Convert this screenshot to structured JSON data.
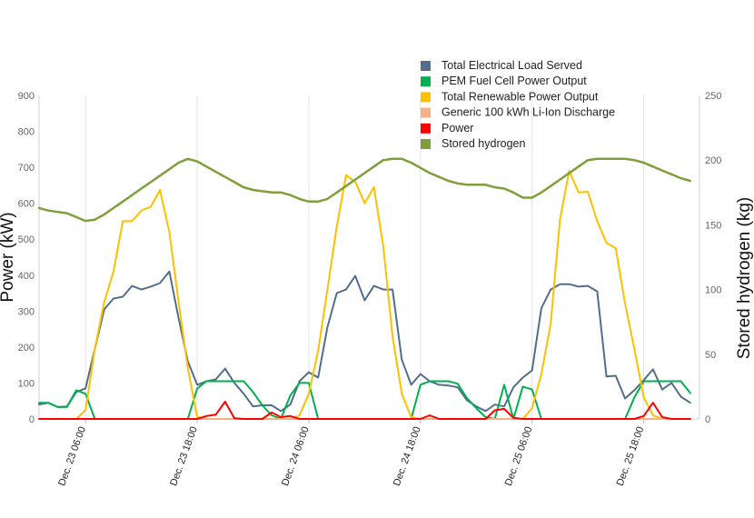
{
  "chart_data": {
    "type": "line",
    "xlabel": "",
    "ylabel": "Power (kW)",
    "y2label": "Stored hydrogen (kg)",
    "xlim": [
      0,
      71
    ],
    "ylim": [
      0,
      900
    ],
    "y2lim": [
      0,
      250
    ],
    "yticks": [
      0,
      100,
      200,
      300,
      400,
      500,
      600,
      700,
      800,
      900
    ],
    "yticklabels": [
      "0",
      "100",
      "200",
      "300",
      "400",
      "500",
      "600",
      "700",
      "800",
      "900"
    ],
    "y2ticks": [
      0,
      50,
      100,
      150,
      200,
      250
    ],
    "y2ticklabels": [
      "0",
      "50",
      "100",
      "150",
      "200",
      "250"
    ],
    "xticks": [
      {
        "x": 5,
        "label": "Dec. 23 06:00"
      },
      {
        "x": 17,
        "label": "Dec. 23 18:00"
      },
      {
        "x": 29,
        "label": "Dec. 24 06:00"
      },
      {
        "x": 41,
        "label": "Dec. 24 18:00"
      },
      {
        "x": 53,
        "label": "Dec. 25 06:00"
      },
      {
        "x": 65,
        "label": "Dec. 25 18:00"
      }
    ],
    "grid": true,
    "legend_position": "top-right",
    "series": [
      {
        "name": "Total Electrical Load Served",
        "color": "#536e8a",
        "axis": "left",
        "values": [
          40,
          45,
          33,
          35,
          75,
          85,
          195,
          305,
          335,
          340,
          370,
          360,
          368,
          378,
          410,
          280,
          160,
          95,
          105,
          110,
          140,
          100,
          70,
          35,
          38,
          38,
          22,
          40,
          105,
          130,
          115,
          255,
          350,
          360,
          398,
          330,
          370,
          360,
          360,
          165,
          95,
          125,
          105,
          95,
          93,
          88,
          52,
          35,
          22,
          40,
          35,
          88,
          115,
          135,
          308,
          360,
          375,
          375,
          368,
          370,
          355,
          118,
          120,
          57,
          80,
          108,
          138,
          82,
          100,
          62,
          45
        ]
      },
      {
        "name": "PEM Fuel Cell Power Output",
        "color": "#00b050",
        "axis": "left",
        "values": [
          45,
          45,
          33,
          33,
          80,
          70,
          0,
          0,
          0,
          0,
          0,
          0,
          0,
          0,
          0,
          0,
          0,
          85,
          105,
          105,
          105,
          105,
          105,
          75,
          38,
          10,
          0,
          65,
          100,
          100,
          0,
          0,
          0,
          0,
          0,
          0,
          0,
          0,
          0,
          0,
          0,
          95,
          105,
          105,
          105,
          98,
          58,
          30,
          5,
          0,
          95,
          0,
          90,
          82,
          0,
          0,
          0,
          0,
          0,
          0,
          0,
          0,
          0,
          0,
          60,
          105,
          105,
          105,
          105,
          105,
          72
        ]
      },
      {
        "name": "Total Renewable Power Output",
        "color": "#ffc000",
        "axis": "left",
        "values": [
          0,
          0,
          0,
          0,
          0,
          25,
          195,
          325,
          410,
          550,
          550,
          580,
          590,
          637,
          520,
          325,
          140,
          5,
          0,
          0,
          0,
          0,
          0,
          0,
          0,
          0,
          0,
          0,
          10,
          70,
          190,
          360,
          535,
          678,
          660,
          600,
          645,
          480,
          230,
          70,
          5,
          0,
          0,
          0,
          0,
          0,
          0,
          0,
          0,
          0,
          0,
          0,
          0,
          30,
          125,
          265,
          555,
          690,
          630,
          632,
          550,
          490,
          475,
          320,
          195,
          60,
          10,
          0,
          0,
          0,
          0
        ]
      },
      {
        "name": "Generic 100 kWh Li-Ion Discharge",
        "color": "#f4b183",
        "axis": "left",
        "values": [
          0,
          0,
          0,
          0,
          0,
          0,
          0,
          0,
          0,
          0,
          0,
          0,
          0,
          0,
          0,
          0,
          0,
          0,
          0,
          0,
          0,
          0,
          0,
          0,
          0,
          0,
          0,
          0,
          0,
          0,
          0,
          0,
          0,
          0,
          0,
          0,
          0,
          0,
          0,
          0,
          0,
          0,
          0,
          0,
          0,
          0,
          0,
          0,
          0,
          0,
          0,
          0,
          0,
          0,
          0,
          0,
          0,
          0,
          0,
          0,
          0,
          0,
          0,
          0,
          0,
          0,
          0,
          0,
          0,
          0,
          0
        ]
      },
      {
        "name": "Power",
        "color": "#ff0000",
        "axis": "left",
        "values": [
          0,
          0,
          0,
          0,
          0,
          0,
          0,
          0,
          0,
          0,
          0,
          0,
          0,
          0,
          0,
          0,
          0,
          0,
          8,
          12,
          48,
          2,
          0,
          0,
          0,
          18,
          5,
          8,
          0,
          0,
          0,
          0,
          0,
          0,
          0,
          0,
          0,
          0,
          0,
          0,
          0,
          0,
          10,
          0,
          0,
          0,
          0,
          0,
          0,
          24,
          28,
          3,
          0,
          0,
          0,
          0,
          0,
          0,
          0,
          0,
          0,
          0,
          0,
          0,
          0,
          8,
          45,
          5,
          0,
          0,
          0
        ]
      },
      {
        "name": "Stored hydrogen",
        "color": "#7f9f3a",
        "axis": "right",
        "values": [
          163,
          161,
          160,
          159,
          156,
          153,
          154,
          158,
          163,
          168,
          173,
          178,
          183,
          188,
          193,
          198,
          201,
          199,
          195,
          191,
          187,
          183,
          179,
          177,
          176,
          175,
          175,
          173,
          170,
          168,
          168,
          170,
          175,
          180,
          185,
          190,
          195,
          200,
          201,
          201,
          198,
          194,
          190,
          187,
          184,
          182,
          181,
          181,
          181,
          179,
          178,
          175,
          171,
          171,
          175,
          180,
          185,
          190,
          195,
          200,
          201,
          201,
          201,
          201,
          200,
          198,
          195,
          192,
          189,
          186,
          184
        ]
      }
    ]
  }
}
